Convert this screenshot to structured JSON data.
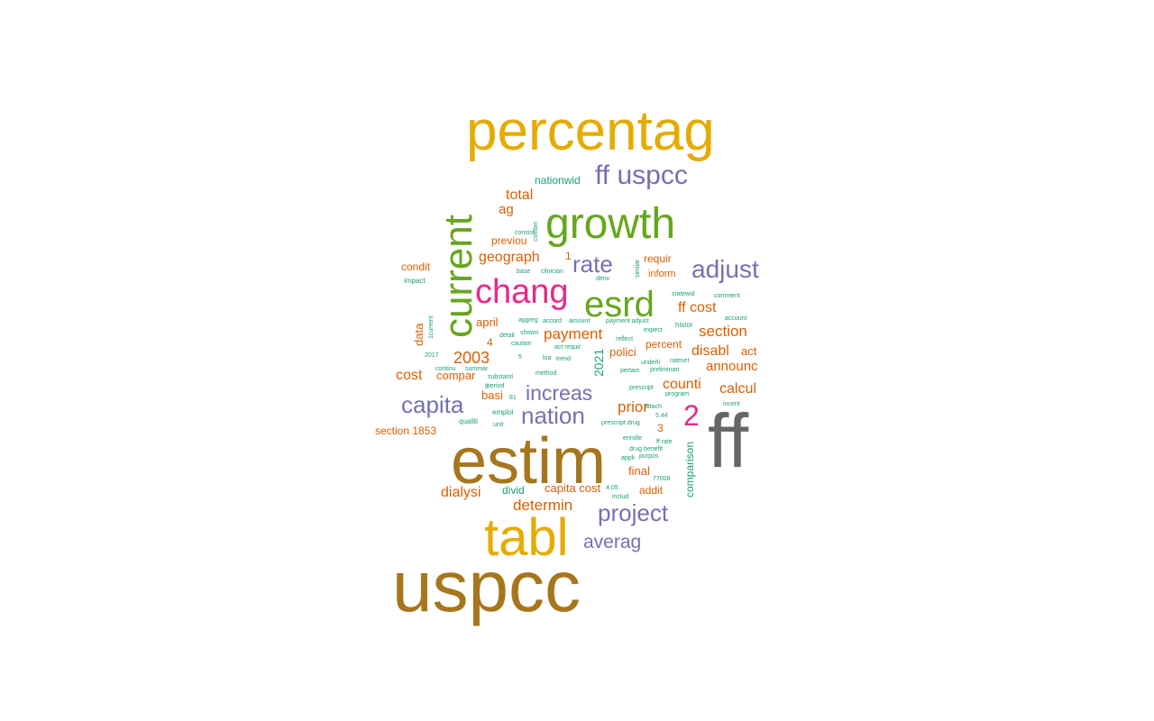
{
  "colors": {
    "gold": "#E6AB02",
    "brown": "#A6761D",
    "grey": "#666666",
    "green": "#66A61E",
    "purple": "#7570B3",
    "pink": "#E7298A",
    "orange": "#D95F02",
    "teal": "#1B9E77"
  },
  "words": [
    {
      "t": "uspcc",
      "c": "brown"
    },
    {
      "t": "estim",
      "c": "brown"
    },
    {
      "t": "ff",
      "c": "grey"
    },
    {
      "t": "percentag",
      "c": "gold"
    },
    {
      "t": "tabl",
      "c": "gold"
    },
    {
      "t": "current",
      "c": "green"
    },
    {
      "t": "growth",
      "c": "green"
    },
    {
      "t": "esrd",
      "c": "green"
    },
    {
      "t": "chang",
      "c": "pink"
    },
    {
      "t": "ff uspcc",
      "c": "purple"
    },
    {
      "t": "rate",
      "c": "purple"
    },
    {
      "t": "adjust",
      "c": "purple"
    },
    {
      "t": "capita",
      "c": "purple"
    },
    {
      "t": "nation",
      "c": "purple"
    },
    {
      "t": "increas",
      "c": "purple"
    },
    {
      "t": "project",
      "c": "purple"
    },
    {
      "t": "averag",
      "c": "purple"
    },
    {
      "t": "2",
      "c": "pink"
    },
    {
      "t": "2003",
      "c": "orange"
    },
    {
      "t": "payment",
      "c": "orange"
    },
    {
      "t": "geograph",
      "c": "orange"
    },
    {
      "t": "total",
      "c": "orange"
    },
    {
      "t": "ag",
      "c": "orange"
    },
    {
      "t": "previou",
      "c": "orange"
    },
    {
      "t": "section",
      "c": "orange"
    },
    {
      "t": "ff cost",
      "c": "orange"
    },
    {
      "t": "disabl",
      "c": "orange"
    },
    {
      "t": "announc",
      "c": "orange"
    },
    {
      "t": "calcul",
      "c": "orange"
    },
    {
      "t": "counti",
      "c": "orange"
    },
    {
      "t": "prior",
      "c": "orange"
    },
    {
      "t": "cost",
      "c": "orange"
    },
    {
      "t": "compar",
      "c": "orange"
    },
    {
      "t": "dialysi",
      "c": "orange"
    },
    {
      "t": "determin",
      "c": "orange"
    },
    {
      "t": "capita cost",
      "c": "orange"
    },
    {
      "t": "section 1853",
      "c": "orange"
    },
    {
      "t": "polici",
      "c": "orange"
    },
    {
      "t": "percent",
      "c": "orange"
    },
    {
      "t": "act",
      "c": "orange"
    },
    {
      "t": "april",
      "c": "orange"
    },
    {
      "t": "condit",
      "c": "orange"
    },
    {
      "t": "requir",
      "c": "orange"
    },
    {
      "t": "inform",
      "c": "orange"
    },
    {
      "t": "basi",
      "c": "orange"
    },
    {
      "t": "final",
      "c": "orange"
    },
    {
      "t": "addit",
      "c": "orange"
    },
    {
      "t": "data",
      "c": "orange"
    },
    {
      "t": "4",
      "c": "orange"
    },
    {
      "t": "1",
      "c": "orange"
    },
    {
      "t": "3",
      "c": "orange"
    },
    {
      "t": "nationwid",
      "c": "teal"
    },
    {
      "t": "2021",
      "c": "teal"
    },
    {
      "t": "comparison",
      "c": "teal"
    },
    {
      "t": "divid",
      "c": "teal"
    },
    {
      "t": "emploi",
      "c": "teal"
    },
    {
      "t": "qualiti",
      "c": "teal"
    },
    {
      "t": "consist",
      "c": "teal"
    },
    {
      "t": "combin",
      "c": "teal"
    },
    {
      "t": "impact",
      "c": "teal"
    },
    {
      "t": "base",
      "c": "teal"
    },
    {
      "t": "clinician",
      "c": "teal"
    },
    {
      "t": "deriv",
      "c": "teal"
    },
    {
      "t": "similar",
      "c": "teal"
    },
    {
      "t": "statewid",
      "c": "teal"
    },
    {
      "t": "comment",
      "c": "teal"
    },
    {
      "t": "account",
      "c": "teal"
    },
    {
      "t": "histor",
      "c": "teal"
    },
    {
      "t": "expect",
      "c": "teal"
    },
    {
      "t": "payment adjust",
      "c": "teal"
    },
    {
      "t": "aggreg",
      "c": "teal"
    },
    {
      "t": "accord",
      "c": "teal"
    },
    {
      "t": "amount",
      "c": "teal"
    },
    {
      "t": "detail",
      "c": "teal"
    },
    {
      "t": "shown",
      "c": "teal"
    },
    {
      "t": "caution",
      "c": "teal"
    },
    {
      "t": "reflect",
      "c": "teal"
    },
    {
      "t": "act requir",
      "c": "teal"
    },
    {
      "t": "trend",
      "c": "teal"
    },
    {
      "t": "loa",
      "c": "teal"
    },
    {
      "t": "method",
      "c": "teal"
    },
    {
      "t": "summar",
      "c": "teal"
    },
    {
      "t": "continu",
      "c": "teal"
    },
    {
      "t": "substanti",
      "c": "teal"
    },
    {
      "t": "period",
      "c": "teal"
    },
    {
      "t": "underli",
      "c": "teal"
    },
    {
      "t": "rateset",
      "c": "teal"
    },
    {
      "t": "pertain",
      "c": "teal"
    },
    {
      "t": "preliminari",
      "c": "teal"
    },
    {
      "t": "prescript",
      "c": "teal"
    },
    {
      "t": "program",
      "c": "teal"
    },
    {
      "t": "incent",
      "c": "teal"
    },
    {
      "t": "attach",
      "c": "teal"
    },
    {
      "t": "5.44",
      "c": "teal"
    },
    {
      "t": "prescript drug",
      "c": "teal"
    },
    {
      "t": "enrolle",
      "c": "teal"
    },
    {
      "t": "ff rate",
      "c": "teal"
    },
    {
      "t": "drug benefit",
      "c": "teal"
    },
    {
      "t": "appli",
      "c": "teal"
    },
    {
      "t": "purpos",
      "c": "teal"
    },
    {
      "t": "77008",
      "c": "teal"
    },
    {
      "t": "4.05",
      "c": "teal"
    },
    {
      "t": "includ",
      "c": "teal"
    },
    {
      "t": "unit",
      "c": "teal"
    },
    {
      "t": "2017",
      "c": "teal"
    },
    {
      "t": "1current",
      "c": "teal"
    },
    {
      "t": "81",
      "c": "teal"
    },
    {
      "t": "5",
      "c": "teal"
    },
    {
      "t": "ff",
      "c": "teal"
    }
  ]
}
